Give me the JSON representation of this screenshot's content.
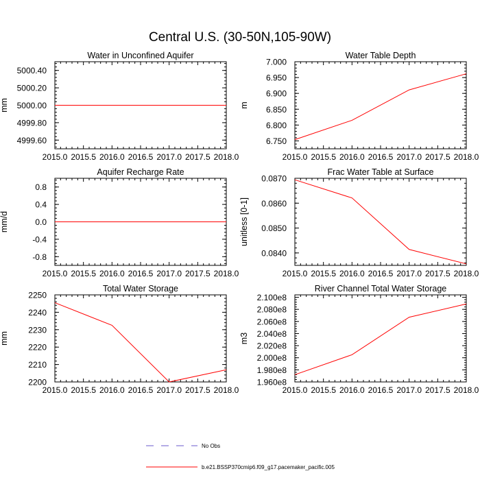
{
  "figure": {
    "title": "Central U.S. (30-50N,105-90W)"
  },
  "legend": {
    "entries": [
      {
        "label": "No Obs",
        "color": "#6a5acd",
        "style": "dashed"
      },
      {
        "label": "b.e21.BSSP370cmip6.f09_g17.pacemaker_pacific.005",
        "color": "#ff0000",
        "style": "solid"
      }
    ]
  },
  "chart_data": [
    {
      "type": "line",
      "title": "Water in Unconfined Aquifer",
      "xlabel": "",
      "ylabel": "mm",
      "xlim": [
        2015.0,
        2018.0
      ],
      "ylim": [
        4999.5,
        5000.5
      ],
      "xticks": [
        "2015.0",
        "2015.5",
        "2016.0",
        "2016.5",
        "2017.0",
        "2017.5",
        "2018.0"
      ],
      "yticks": [
        "4999.60",
        "4999.80",
        "5000.00",
        "5000.20",
        "5000.40"
      ],
      "ytick_values": [
        4999.6,
        4999.8,
        5000.0,
        5000.2,
        5000.4
      ],
      "series": [
        {
          "color": "#ff0000",
          "x": [
            2015,
            2016,
            2017,
            2018
          ],
          "y": [
            5000.0,
            5000.0,
            5000.0,
            5000.0
          ]
        }
      ]
    },
    {
      "type": "line",
      "title": "Water Table Depth",
      "xlabel": "",
      "ylabel": "m",
      "xlim": [
        2015.0,
        2018.0
      ],
      "ylim": [
        6.725,
        7.0
      ],
      "xticks": [
        "2015.0",
        "2015.5",
        "2016.0",
        "2016.5",
        "2017.0",
        "2017.5",
        "2018.0"
      ],
      "yticks": [
        "6.750",
        "6.800",
        "6.850",
        "6.900",
        "6.950",
        "7.000"
      ],
      "ytick_values": [
        6.75,
        6.8,
        6.85,
        6.9,
        6.95,
        7.0
      ],
      "series": [
        {
          "color": "#ff0000",
          "x": [
            2015,
            2016,
            2017,
            2018
          ],
          "y": [
            6.754,
            6.815,
            6.911,
            6.962
          ]
        }
      ]
    },
    {
      "type": "line",
      "title": "Aquifer Recharge Rate",
      "xlabel": "",
      "ylabel": "mm/d",
      "xlim": [
        2015.0,
        2018.0
      ],
      "ylim": [
        -1.0,
        1.0
      ],
      "xticks": [
        "2015.0",
        "2015.5",
        "2016.0",
        "2016.5",
        "2017.0",
        "2017.5",
        "2018.0"
      ],
      "yticks": [
        "-0.8",
        "-0.4",
        "0.0",
        "0.4",
        "0.8"
      ],
      "ytick_values": [
        -0.8,
        -0.4,
        0.0,
        0.4,
        0.8
      ],
      "series": [
        {
          "color": "#ff0000",
          "x": [
            2015,
            2016,
            2017,
            2018
          ],
          "y": [
            0.0,
            0.0,
            0.0,
            0.0
          ]
        }
      ]
    },
    {
      "type": "line",
      "title": "Frac Water Table at Surface",
      "xlabel": "",
      "ylabel": "unitless [0-1]",
      "xlim": [
        2015.0,
        2018.0
      ],
      "ylim": [
        0.0835,
        0.087
      ],
      "xticks": [
        "2015.0",
        "2015.5",
        "2016.0",
        "2016.5",
        "2017.0",
        "2017.5",
        "2018.0"
      ],
      "yticks": [
        "0.0840",
        "0.0850",
        "0.0860",
        "0.0870"
      ],
      "ytick_values": [
        0.084,
        0.085,
        0.086,
        0.087
      ],
      "series": [
        {
          "color": "#ff0000",
          "x": [
            2015,
            2016,
            2017,
            2018
          ],
          "y": [
            0.08694,
            0.08621,
            0.08414,
            0.08356
          ]
        }
      ]
    },
    {
      "type": "line",
      "title": "Total Water Storage",
      "xlabel": "",
      "ylabel": "mm",
      "xlim": [
        2015.0,
        2018.0
      ],
      "ylim": [
        2200,
        2250
      ],
      "xticks": [
        "2015.0",
        "2015.5",
        "2016.0",
        "2016.5",
        "2017.0",
        "2017.5",
        "2018.0"
      ],
      "yticks": [
        "2200",
        "2210",
        "2220",
        "2230",
        "2240",
        "2250"
      ],
      "ytick_values": [
        2200,
        2210,
        2220,
        2230,
        2240,
        2250
      ],
      "series": [
        {
          "color": "#ff0000",
          "x": [
            2015,
            2016,
            2017,
            2018
          ],
          "y": [
            2245.5,
            2232.5,
            2200.0,
            2207.0
          ]
        }
      ]
    },
    {
      "type": "line",
      "title": "River Channel Total Water Storage",
      "xlabel": "",
      "ylabel": "m3",
      "xlim": [
        2015.0,
        2018.0
      ],
      "ylim": [
        196000000,
        210400000
      ],
      "xticks": [
        "2015.0",
        "2015.5",
        "2016.0",
        "2016.5",
        "2017.0",
        "2017.5",
        "2018.0"
      ],
      "yticks": [
        "1.960e8",
        "1.980e8",
        "2.000e8",
        "2.020e8",
        "2.040e8",
        "2.060e8",
        "2.080e8",
        "2.100e8"
      ],
      "ytick_values": [
        196000000,
        198000000,
        200000000,
        202000000,
        204000000,
        206000000,
        208000000,
        210000000
      ],
      "series": [
        {
          "color": "#ff0000",
          "x": [
            2015,
            2016,
            2017,
            2018
          ],
          "y": [
            197200000,
            200500000,
            206700000,
            208900000
          ]
        }
      ]
    }
  ]
}
